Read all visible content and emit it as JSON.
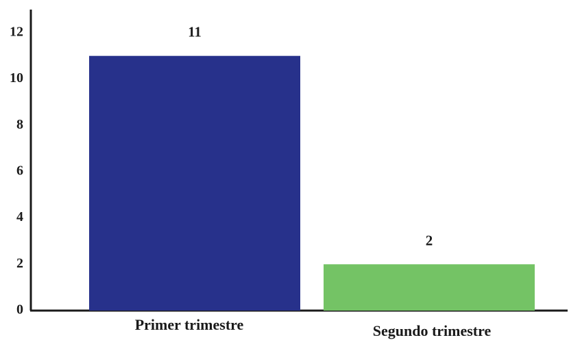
{
  "chart_data": {
    "type": "bar",
    "categories": [
      "Primer trimestre",
      "Segundo trimestre"
    ],
    "values": [
      11,
      2
    ],
    "bar_colors": [
      "#27318B",
      "#74C365"
    ],
    "yticks": [
      "0",
      "2",
      "4",
      "6",
      "8",
      "10",
      "12"
    ],
    "ylim": [
      0,
      13
    ],
    "grid": false,
    "legend": "none",
    "title": "",
    "xlabel": "",
    "ylabel": ""
  }
}
